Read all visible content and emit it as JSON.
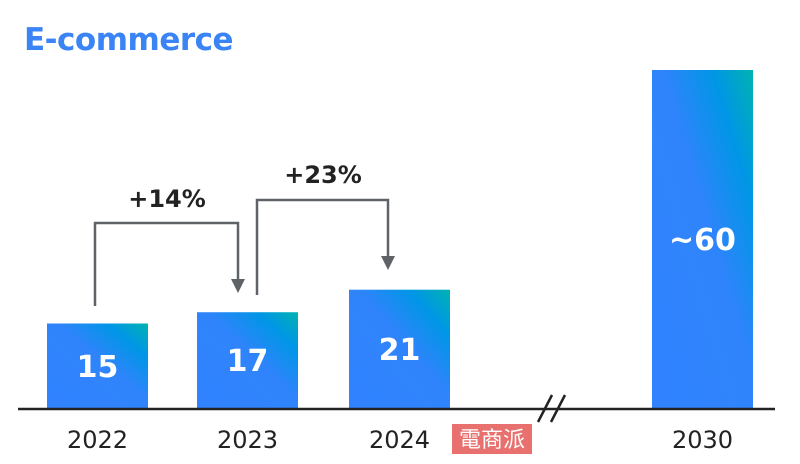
{
  "chart_data": {
    "type": "bar",
    "title": "E-commerce",
    "categories": [
      "2022",
      "2023",
      "2024",
      "2030"
    ],
    "values": [
      15,
      17,
      21,
      60
    ],
    "value_labels": [
      "15",
      "17",
      "21",
      "~60"
    ],
    "axis_break_between": [
      "2024",
      "2030"
    ],
    "ylim": [
      0,
      60
    ],
    "grid": false,
    "annotations": [
      {
        "from": "2022",
        "to": "2023",
        "label": "+14%"
      },
      {
        "from": "2023",
        "to": "2024",
        "label": "+23%"
      }
    ],
    "colors": {
      "title": "#3a84f5",
      "bar_bottom": "#3182ff",
      "bar_mid": "#0096e6",
      "bar_top_corner": "#00b3b0",
      "arrow": "#5f6368",
      "axis": "#222222"
    }
  },
  "watermark": "電商派"
}
